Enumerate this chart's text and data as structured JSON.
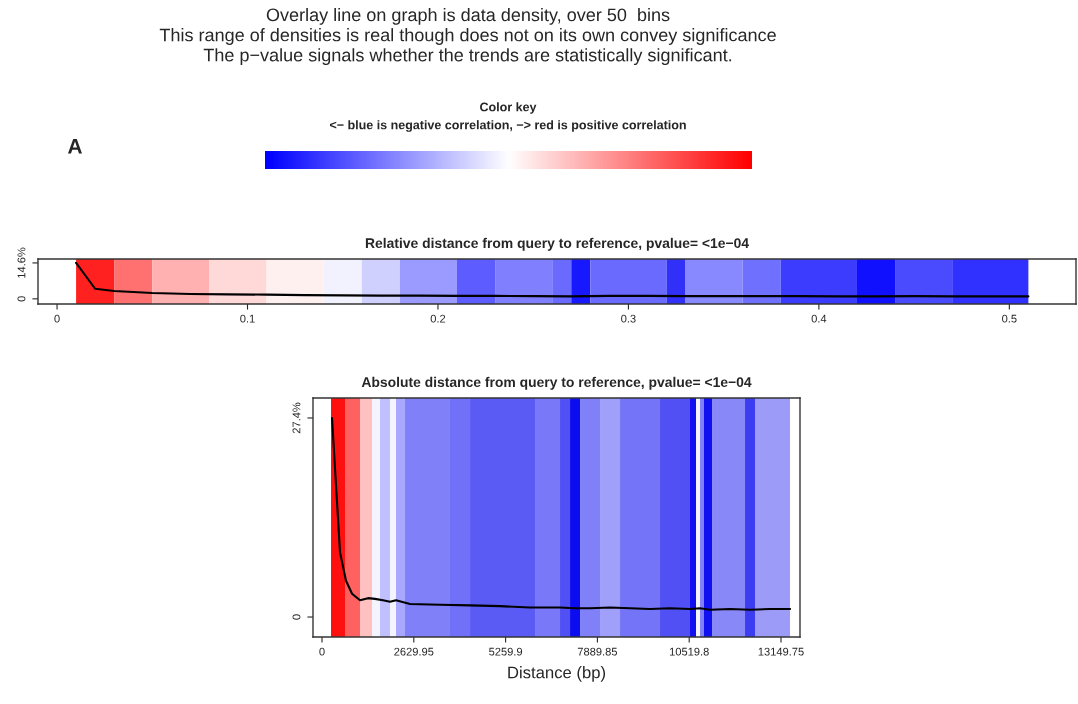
{
  "chart_data": [
    {
      "type": "other",
      "title": "Overlay line on graph is data density, over 50  bins\nThis range of densities is real though does not on its own convey significance\nThe p−value signals whether the trends are statistically significant.",
      "annotations": [
        "Color key",
        "<− blue is negative correlation, −> red is positive correlation",
        "A"
      ]
    },
    {
      "type": "line",
      "title": "Relative distance from query to reference, pvalue= <1e−04",
      "x": [
        0.01,
        0.02,
        0.03,
        0.04,
        0.05,
        0.07,
        0.09,
        0.11,
        0.13,
        0.15,
        0.17,
        0.19,
        0.21,
        0.23,
        0.25,
        0.27,
        0.29,
        0.31,
        0.33,
        0.35,
        0.37,
        0.39,
        0.41,
        0.43,
        0.45,
        0.47,
        0.49,
        0.51
      ],
      "series": [
        {
          "color": "#000000",
          "values": [
            14.6,
            4.1,
            3.2,
            2.8,
            2.4,
            2.0,
            1.8,
            1.7,
            1.5,
            1.4,
            1.3,
            1.3,
            1.2,
            1.2,
            1.1,
            1.0,
            1.2,
            1.2,
            1.1,
            1.1,
            1.1,
            1.1,
            1.0,
            1.0,
            1.1,
            1.0,
            1.0,
            1.0
          ]
        }
      ],
      "xlim": [
        -0.01,
        0.535
      ],
      "xticks": [
        0,
        0.1,
        0.2,
        0.3,
        0.4,
        0.5
      ],
      "ylim": [
        -2.1,
        16.2
      ],
      "yticks": [
        {
          "value": 14.6,
          "label": "14.6%"
        },
        0
      ],
      "bands": [
        {
          "axis": "x",
          "from": 0.01,
          "to": 0.03,
          "color": "#ff2020"
        },
        {
          "axis": "x",
          "from": 0.03,
          "to": 0.05,
          "color": "#ff7070"
        },
        {
          "axis": "x",
          "from": 0.05,
          "to": 0.08,
          "color": "#ffb0b0"
        },
        {
          "axis": "x",
          "from": 0.08,
          "to": 0.11,
          "color": "#ffd8d8"
        },
        {
          "axis": "x",
          "from": 0.11,
          "to": 0.14,
          "color": "#fff0f0"
        },
        {
          "axis": "x",
          "from": 0.14,
          "to": 0.16,
          "color": "#f2f2ff"
        },
        {
          "axis": "x",
          "from": 0.16,
          "to": 0.18,
          "color": "#d0d0ff"
        },
        {
          "axis": "x",
          "from": 0.18,
          "to": 0.21,
          "color": "#9a9aff"
        },
        {
          "axis": "x",
          "from": 0.21,
          "to": 0.23,
          "color": "#5c5cff"
        },
        {
          "axis": "x",
          "from": 0.23,
          "to": 0.26,
          "color": "#8080ff"
        },
        {
          "axis": "x",
          "from": 0.26,
          "to": 0.27,
          "color": "#6a6aff"
        },
        {
          "axis": "x",
          "from": 0.27,
          "to": 0.28,
          "color": "#1818ff"
        },
        {
          "axis": "x",
          "from": 0.28,
          "to": 0.32,
          "color": "#6a6aff"
        },
        {
          "axis": "x",
          "from": 0.32,
          "to": 0.33,
          "color": "#3030f8"
        },
        {
          "axis": "x",
          "from": 0.33,
          "to": 0.36,
          "color": "#8888ff"
        },
        {
          "axis": "x",
          "from": 0.36,
          "to": 0.38,
          "color": "#7070ff"
        },
        {
          "axis": "x",
          "from": 0.38,
          "to": 0.42,
          "color": "#3c3cff"
        },
        {
          "axis": "x",
          "from": 0.42,
          "to": 0.44,
          "color": "#1010ff"
        },
        {
          "axis": "x",
          "from": 0.44,
          "to": 0.47,
          "color": "#4a4aff"
        },
        {
          "axis": "x",
          "from": 0.47,
          "to": 0.51,
          "color": "#3030ff"
        }
      ],
      "grid": false,
      "legend": false
    },
    {
      "type": "line",
      "title": "Absolute distance from query to reference, pvalue= <1e−04",
      "xlabel": "Distance (bp)",
      "x": [
        287,
        516,
        688,
        860,
        1089,
        1318,
        1519,
        1748,
        1948,
        2120,
        2521,
        3381,
        4241,
        5100,
        5960,
        6819,
        7249,
        7679,
        8252,
        8825,
        9398,
        9971,
        10544,
        10831,
        11117,
        11690,
        12264,
        12837,
        13410
      ],
      "series": [
        {
          "color": "#000000",
          "values": [
            27.4,
            8.9,
            5.0,
            3.2,
            2.3,
            2.6,
            2.5,
            2.3,
            2.1,
            2.3,
            1.8,
            1.7,
            1.6,
            1.5,
            1.3,
            1.3,
            1.2,
            1.2,
            1.3,
            1.2,
            1.1,
            1.2,
            1.1,
            1.2,
            1.0,
            1.1,
            1.0,
            1.1,
            1.1
          ]
        }
      ],
      "xlim": [
        -258,
        13694
      ],
      "xticks": [
        0,
        2629.95,
        5259.9,
        7889.85,
        10519.8,
        13149.75
      ],
      "ylim": [
        -2.75,
        30.15
      ],
      "yticks": [
        {
          "value": 27.4,
          "label": "27.4%"
        },
        0
      ],
      "bands": [
        {
          "axis": "x",
          "from": 258,
          "to": 659,
          "color": "#ff1010"
        },
        {
          "axis": "x",
          "from": 659,
          "to": 1089,
          "color": "#ff6060"
        },
        {
          "axis": "x",
          "from": 1089,
          "to": 1433,
          "color": "#ffc0c0"
        },
        {
          "axis": "x",
          "from": 1433,
          "to": 1662,
          "color": "#f4f4ff"
        },
        {
          "axis": "x",
          "from": 1662,
          "to": 1948,
          "color": "#c0c0ff"
        },
        {
          "axis": "x",
          "from": 1948,
          "to": 2120,
          "color": "#f4f4ff"
        },
        {
          "axis": "x",
          "from": 2120,
          "to": 2378,
          "color": "#a8a8ff"
        },
        {
          "axis": "x",
          "from": 2378,
          "to": 3667,
          "color": "#8080f8"
        },
        {
          "axis": "x",
          "from": 3667,
          "to": 4241,
          "color": "#7070f8"
        },
        {
          "axis": "x",
          "from": 4241,
          "to": 6103,
          "color": "#5a5af5"
        },
        {
          "axis": "x",
          "from": 6103,
          "to": 6819,
          "color": "#7878f8"
        },
        {
          "axis": "x",
          "from": 6819,
          "to": 7106,
          "color": "#5050f5"
        },
        {
          "axis": "x",
          "from": 7106,
          "to": 7392,
          "color": "#0c0cf0"
        },
        {
          "axis": "x",
          "from": 7392,
          "to": 7965,
          "color": "#8080f8"
        },
        {
          "axis": "x",
          "from": 7965,
          "to": 8538,
          "color": "#a0a0fa"
        },
        {
          "axis": "x",
          "from": 8538,
          "to": 9684,
          "color": "#7474f8"
        },
        {
          "axis": "x",
          "from": 9684,
          "to": 10543,
          "color": "#5050f5"
        },
        {
          "axis": "x",
          "from": 10543,
          "to": 10715,
          "color": "#1010f0"
        },
        {
          "axis": "x",
          "from": 10715,
          "to": 10830,
          "color": "#f4f4ff"
        },
        {
          "axis": "x",
          "from": 10830,
          "to": 10944,
          "color": "#8080f8"
        },
        {
          "axis": "x",
          "from": 10944,
          "to": 11174,
          "color": "#1010f0"
        },
        {
          "axis": "x",
          "from": 11174,
          "to": 12119,
          "color": "#8888f8"
        },
        {
          "axis": "x",
          "from": 12119,
          "to": 12405,
          "color": "#3c3cf0"
        },
        {
          "axis": "x",
          "from": 12405,
          "to": 13408,
          "color": "#9c9cf8"
        }
      ],
      "grid": false,
      "legend": false
    }
  ]
}
